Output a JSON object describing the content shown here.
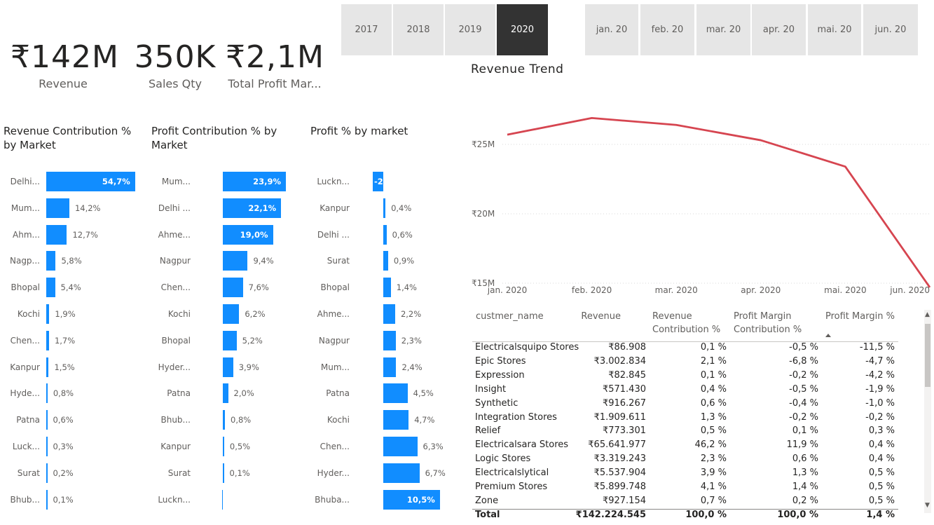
{
  "years": {
    "items": [
      "2017",
      "2018",
      "2019",
      "2020"
    ],
    "selected": "2020"
  },
  "months": [
    "jan. 20",
    "feb. 20",
    "mar. 20",
    "apr. 20",
    "mai. 20",
    "jun. 20"
  ],
  "kpis": [
    {
      "value": "₹142M",
      "label": "Revenue"
    },
    {
      "value": "350K",
      "label": "Sales Qty"
    },
    {
      "value": "₹2,1M",
      "label": "Total Profit Mar..."
    }
  ],
  "revenue_contribution": {
    "title": "Revenue Contribution % by Market",
    "categories": [
      "Delhi...",
      "Mum...",
      "Ahm...",
      "Nagp...",
      "Bhopal",
      "Kochi",
      "Chen...",
      "Kanpur",
      "Hyde...",
      "Patna",
      "Luck...",
      "Surat",
      "Bhub..."
    ],
    "values": [
      54.7,
      14.2,
      12.7,
      5.8,
      5.4,
      1.9,
      1.7,
      1.5,
      0.8,
      0.6,
      0.3,
      0.2,
      0.1
    ],
    "labels": [
      "54,7%",
      "14,2%",
      "12,7%",
      "5,8%",
      "5,4%",
      "1,9%",
      "1,7%",
      "1,5%",
      "0,8%",
      "0,6%",
      "0,3%",
      "0,2%",
      "0,1%"
    ]
  },
  "profit_contribution": {
    "title": "Profit Contribution % by Market",
    "categories": [
      "Mum...",
      "Delhi ...",
      "Ahme...",
      "Nagpur",
      "Chen...",
      "Kochi",
      "Bhopal",
      "Hyder...",
      "Patna",
      "Bhub...",
      "Kanpur",
      "Surat",
      "Luckn..."
    ],
    "values": [
      23.9,
      22.1,
      19.0,
      9.4,
      7.6,
      6.2,
      5.2,
      3.9,
      2.0,
      0.8,
      0.5,
      0.1,
      -0.3
    ],
    "labels": [
      "23,9%",
      "22,1%",
      "19,0%",
      "9,4%",
      "7,6%",
      "6,2%",
      "5,2%",
      "3,9%",
      "2,0%",
      "0,8%",
      "0,5%",
      "0,1%",
      ""
    ]
  },
  "profit_by_market": {
    "title": "Profit % by market",
    "categories": [
      "Luckn...",
      "Kanpur",
      "Delhi ...",
      "Surat",
      "Bhopal",
      "Ahme...",
      "Nagpur",
      "Mum...",
      "Patna",
      "Kochi",
      "Chen...",
      "Hyder...",
      "Bhuba..."
    ],
    "values": [
      -2.0,
      0.4,
      0.6,
      0.9,
      1.4,
      2.2,
      2.3,
      2.4,
      4.5,
      4.7,
      6.3,
      6.7,
      10.5
    ],
    "labels": [
      "-2",
      "0,4%",
      "0,6%",
      "0,9%",
      "1,4%",
      "2,2%",
      "2,3%",
      "2,4%",
      "4,5%",
      "4,7%",
      "6,3%",
      "6,7%",
      "10,5%"
    ]
  },
  "chart_data": {
    "type": "line",
    "title": "Revenue Trend",
    "x": [
      "jan. 2020",
      "feb. 2020",
      "mar. 2020",
      "apr. 2020",
      "mai. 2020",
      "jun. 2020"
    ],
    "series": [
      {
        "values": [
          25.7,
          26.9,
          26.4,
          25.3,
          23.4,
          14.7
        ]
      }
    ],
    "yticks": [
      "₹15M",
      "₹20M",
      "₹25M"
    ],
    "ytick_values": [
      15,
      20,
      25
    ],
    "ylim": [
      14.5,
      28
    ],
    "color": "#d64550",
    "grid": true
  },
  "table": {
    "headers": [
      "custmer_name",
      "Revenue",
      "Revenue Contribution %",
      "Profit Margin Contribution %",
      "Profit Margin %"
    ],
    "rows": [
      [
        "Electricalsquipo Stores",
        "₹86.908",
        "0,1 %",
        "-0,5 %",
        "-11,5 %"
      ],
      [
        "Epic Stores",
        "₹3.002.834",
        "2,1 %",
        "-6,8 %",
        "-4,7 %"
      ],
      [
        "Expression",
        "₹82.845",
        "0,1 %",
        "-0,2 %",
        "-4,2 %"
      ],
      [
        "Insight",
        "₹571.430",
        "0,4 %",
        "-0,5 %",
        "-1,9 %"
      ],
      [
        "Synthetic",
        "₹916.267",
        "0,6 %",
        "-0,4 %",
        "-1,0 %"
      ],
      [
        "Integration Stores",
        "₹1.909.611",
        "1,3 %",
        "-0,2 %",
        "-0,2 %"
      ],
      [
        "Relief",
        "₹773.301",
        "0,5 %",
        "0,1 %",
        "0,3 %"
      ],
      [
        "Electricalsara Stores",
        "₹65.641.977",
        "46,2 %",
        "11,9 %",
        "0,4 %"
      ],
      [
        "Logic Stores",
        "₹3.319.243",
        "2,3 %",
        "0,6 %",
        "0,4 %"
      ],
      [
        "Electricalslytical",
        "₹5.537.904",
        "3,9 %",
        "1,3 %",
        "0,5 %"
      ],
      [
        "Premium Stores",
        "₹5.899.748",
        "4,1 %",
        "1,4 %",
        "0,5 %"
      ],
      [
        "Zone",
        "₹927.154",
        "0,7 %",
        "0,2 %",
        "0,5 %"
      ]
    ],
    "total": [
      "Total",
      "₹142.224.545",
      "100,0 %",
      "100,0 %",
      "1,4 %"
    ]
  }
}
